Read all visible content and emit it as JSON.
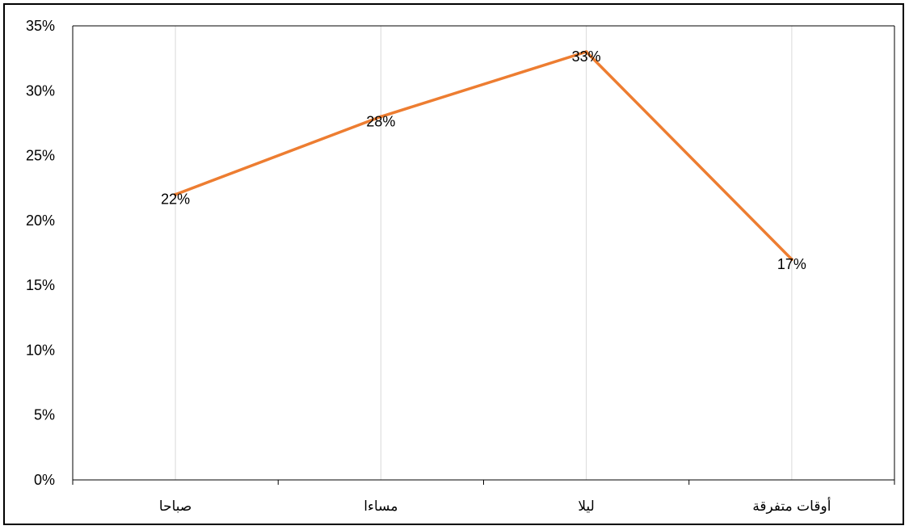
{
  "chart_data": {
    "type": "line",
    "categories": [
      "صباحا",
      "مساءا",
      "ليلا",
      "أوقات متفرقة"
    ],
    "values": [
      22,
      28,
      33,
      17
    ],
    "data_labels": [
      "22%",
      "28%",
      "33%",
      "17%"
    ],
    "ylim": [
      0,
      35
    ],
    "yticks": [
      0,
      5,
      10,
      15,
      20,
      25,
      30,
      35
    ],
    "ytick_labels": [
      "0%",
      "5%",
      "10%",
      "15%",
      "20%",
      "25%",
      "30%",
      "35%"
    ],
    "title": "",
    "xlabel": "",
    "ylabel": "",
    "grid": "vertical",
    "line_color": "#ED7D31",
    "grid_color": "#D9D9D9",
    "axis_color": "#000000"
  }
}
